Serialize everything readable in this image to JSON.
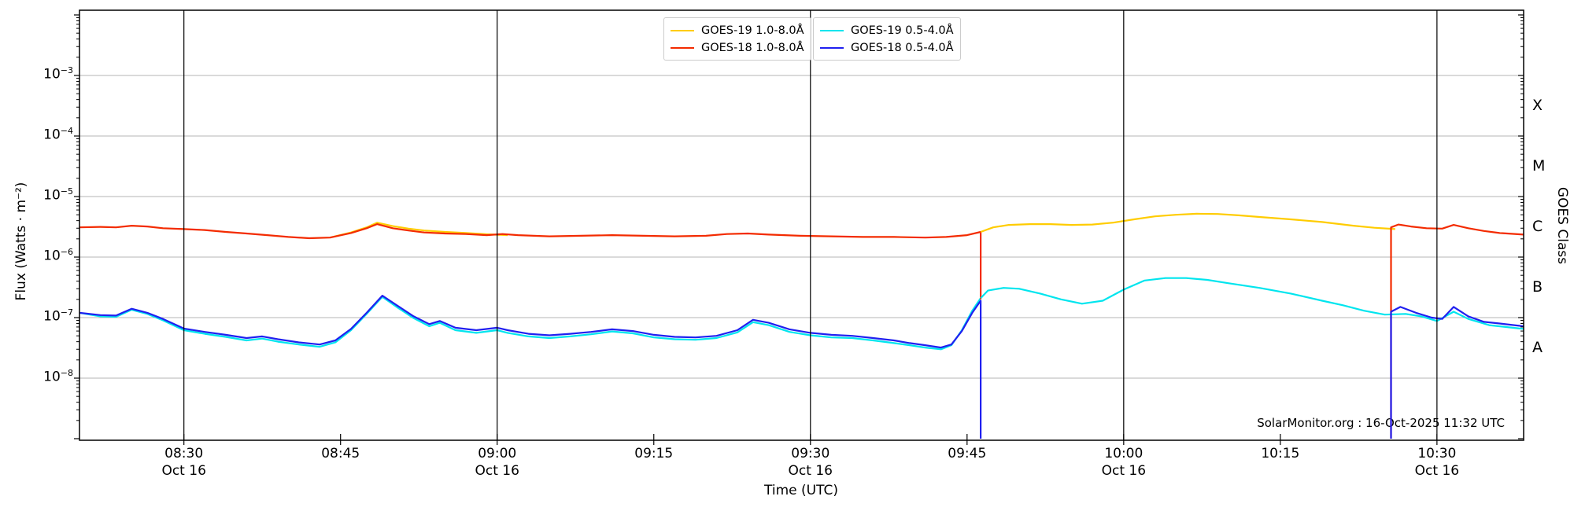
{
  "chart_data": {
    "type": "line",
    "title": "",
    "xlabel": "Time (UTC)",
    "ylabel_left": "Flux (Watts · m⁻²)",
    "ylabel_right": "GOES Class",
    "watermark": "SolarMonitor.org : 16-Oct-2025 11:32 UTC",
    "x_axis": {
      "range_minutes_utc": [
        500,
        638.3
      ],
      "major_ticks": [
        {
          "label": "08:30",
          "date": "Oct 16",
          "minutes": 510
        },
        {
          "label": "08:45",
          "date": "",
          "minutes": 525
        },
        {
          "label": "09:00",
          "date": "Oct 16",
          "minutes": 540
        },
        {
          "label": "09:15",
          "date": "",
          "minutes": 555
        },
        {
          "label": "09:30",
          "date": "Oct 16",
          "minutes": 570
        },
        {
          "label": "09:45",
          "date": "",
          "minutes": 585
        },
        {
          "label": "10:00",
          "date": "Oct 16",
          "minutes": 600
        },
        {
          "label": "10:15",
          "date": "",
          "minutes": 615
        },
        {
          "label": "10:30",
          "date": "Oct 16",
          "minutes": 630
        }
      ],
      "day_boundary_lines_minutes": [
        510,
        540,
        570,
        600,
        630
      ]
    },
    "y_axis": {
      "scale": "log",
      "labeled_decade_exponents": [
        -3,
        -4,
        -5,
        -6,
        -7,
        -8
      ],
      "gridline_exponents": [
        -3,
        -4,
        -5,
        -6,
        -7,
        -8
      ],
      "range_approx": [
        1e-09,
        0.01
      ]
    },
    "goes_classes": [
      {
        "label": "X",
        "log_center": -3.5
      },
      {
        "label": "M",
        "log_center": -4.5
      },
      {
        "label": "C",
        "log_center": -5.5
      },
      {
        "label": "B",
        "log_center": -6.5
      },
      {
        "label": "A",
        "log_center": -7.5
      }
    ],
    "legend": {
      "box1": [
        {
          "label": "GOES-19 1.0-8.0Å",
          "color": "#FFCC00"
        },
        {
          "label": "GOES-18 1.0-8.0Å",
          "color": "#F32B00"
        }
      ],
      "box2": [
        {
          "label": "GOES-19 0.5-4.0Å",
          "color": "#00E5EE"
        },
        {
          "label": "GOES-18 0.5-4.0Å",
          "color": "#2020F0"
        }
      ]
    },
    "colors": {
      "grid": "#b4b4b4",
      "axis": "#000000",
      "event_line": "#000000"
    },
    "series": [
      {
        "name": "GOES-19 0.5-4.0A pre-gap",
        "color": "#00E5EE",
        "points": [
          [
            500,
            1.2e-07
          ],
          [
            502,
            1.05e-07
          ],
          [
            503.5,
            1.03e-07
          ],
          [
            505,
            1.35e-07
          ],
          [
            506.5,
            1.15e-07
          ],
          [
            508,
            9e-08
          ],
          [
            510,
            6.2e-08
          ],
          [
            512,
            5.4e-08
          ],
          [
            514,
            4.8e-08
          ],
          [
            516,
            4.2e-08
          ],
          [
            517.5,
            4.5e-08
          ],
          [
            519,
            4e-08
          ],
          [
            521,
            3.6e-08
          ],
          [
            523,
            3.3e-08
          ],
          [
            524.5,
            3.9e-08
          ],
          [
            526,
            6.2e-08
          ],
          [
            527.5,
            1.15e-07
          ],
          [
            529,
            2.2e-07
          ],
          [
            530.5,
            1.45e-07
          ],
          [
            532,
            9.8e-08
          ],
          [
            533.5,
            7.2e-08
          ],
          [
            534.5,
            8.2e-08
          ],
          [
            536,
            6.2e-08
          ],
          [
            538,
            5.6e-08
          ],
          [
            540,
            6.2e-08
          ],
          [
            541,
            5.6e-08
          ],
          [
            543,
            4.9e-08
          ],
          [
            545,
            4.6e-08
          ],
          [
            547,
            4.9e-08
          ],
          [
            549,
            5.3e-08
          ],
          [
            551,
            5.9e-08
          ],
          [
            553,
            5.5e-08
          ],
          [
            555,
            4.7e-08
          ],
          [
            557,
            4.4e-08
          ],
          [
            559,
            4.3e-08
          ],
          [
            561,
            4.6e-08
          ],
          [
            563,
            5.7e-08
          ],
          [
            564.5,
            8.4e-08
          ],
          [
            566,
            7.5e-08
          ],
          [
            568,
            5.8e-08
          ],
          [
            570,
            5.1e-08
          ],
          [
            572,
            4.7e-08
          ],
          [
            574,
            4.6e-08
          ],
          [
            576,
            4.2e-08
          ],
          [
            578,
            3.8e-08
          ],
          [
            579.5,
            3.5e-08
          ],
          [
            581,
            3.2e-08
          ],
          [
            582.5,
            3e-08
          ],
          [
            583.5,
            3.5e-08
          ],
          [
            584.5,
            6.2e-08
          ],
          [
            585.5,
            1.3e-07
          ],
          [
            586.3,
            2.1e-07
          ]
        ]
      },
      {
        "name": "GOES-18 0.5-4.0A pre-gap",
        "color": "#2020F0",
        "points": [
          [
            500,
            1.2e-07
          ],
          [
            502,
            1.1e-07
          ],
          [
            503.5,
            1.08e-07
          ],
          [
            505,
            1.4e-07
          ],
          [
            506.5,
            1.2e-07
          ],
          [
            508,
            9.5e-08
          ],
          [
            510,
            6.6e-08
          ],
          [
            512,
            5.8e-08
          ],
          [
            514,
            5.2e-08
          ],
          [
            516,
            4.6e-08
          ],
          [
            517.5,
            4.9e-08
          ],
          [
            519,
            4.4e-08
          ],
          [
            521,
            3.9e-08
          ],
          [
            523,
            3.6e-08
          ],
          [
            524.5,
            4.2e-08
          ],
          [
            526,
            6.5e-08
          ],
          [
            527.5,
            1.2e-07
          ],
          [
            529,
            2.3e-07
          ],
          [
            530.5,
            1.55e-07
          ],
          [
            532,
            1.05e-07
          ],
          [
            533.5,
            7.8e-08
          ],
          [
            534.5,
            8.8e-08
          ],
          [
            536,
            6.8e-08
          ],
          [
            538,
            6.2e-08
          ],
          [
            540,
            6.8e-08
          ],
          [
            541,
            6.2e-08
          ],
          [
            543,
            5.4e-08
          ],
          [
            545,
            5.1e-08
          ],
          [
            547,
            5.4e-08
          ],
          [
            549,
            5.8e-08
          ],
          [
            551,
            6.4e-08
          ],
          [
            553,
            6e-08
          ],
          [
            555,
            5.2e-08
          ],
          [
            557,
            4.8e-08
          ],
          [
            559,
            4.7e-08
          ],
          [
            561,
            5e-08
          ],
          [
            563,
            6.2e-08
          ],
          [
            564.5,
            9.2e-08
          ],
          [
            566,
            8.2e-08
          ],
          [
            568,
            6.4e-08
          ],
          [
            570,
            5.6e-08
          ],
          [
            572,
            5.2e-08
          ],
          [
            574,
            5e-08
          ],
          [
            576,
            4.6e-08
          ],
          [
            578,
            4.2e-08
          ],
          [
            579.5,
            3.8e-08
          ],
          [
            581,
            3.5e-08
          ],
          [
            582.5,
            3.2e-08
          ],
          [
            583.5,
            3.6e-08
          ],
          [
            584.5,
            6e-08
          ],
          [
            585.5,
            1.2e-07
          ],
          [
            586.3,
            1.9e-07
          ],
          [
            586.3,
            1e-09
          ]
        ]
      },
      {
        "name": "GOES-19 1.0-8.0A flare segment",
        "color": "#FFCC00",
        "points": [
          [
            524,
            2.1e-06
          ],
          [
            526,
            2.55e-06
          ],
          [
            527.5,
            3.1e-06
          ],
          [
            528.5,
            3.7e-06
          ],
          [
            530,
            3.25e-06
          ],
          [
            531.5,
            2.95e-06
          ],
          [
            533,
            2.75e-06
          ],
          [
            535,
            2.6e-06
          ],
          [
            537,
            2.5e-06
          ],
          [
            539,
            2.38e-06
          ],
          [
            541,
            2.3e-06
          ]
        ]
      },
      {
        "name": "GOES-18 1.0-8.0A pre-gap",
        "color": "#F32B00",
        "points": [
          [
            500,
            3.1e-06
          ],
          [
            502,
            3.15e-06
          ],
          [
            503.5,
            3.1e-06
          ],
          [
            505,
            3.3e-06
          ],
          [
            506.5,
            3.2e-06
          ],
          [
            508,
            3e-06
          ],
          [
            510,
            2.9e-06
          ],
          [
            512,
            2.8e-06
          ],
          [
            514,
            2.6e-06
          ],
          [
            516,
            2.45e-06
          ],
          [
            518,
            2.3e-06
          ],
          [
            520,
            2.15e-06
          ],
          [
            522,
            2.05e-06
          ],
          [
            524,
            2.1e-06
          ],
          [
            526,
            2.5e-06
          ],
          [
            527.5,
            3e-06
          ],
          [
            528.5,
            3.5e-06
          ],
          [
            530,
            3e-06
          ],
          [
            531.5,
            2.75e-06
          ],
          [
            533,
            2.55e-06
          ],
          [
            535,
            2.45e-06
          ],
          [
            537,
            2.4e-06
          ],
          [
            539,
            2.3e-06
          ],
          [
            540.5,
            2.4e-06
          ],
          [
            542,
            2.3e-06
          ],
          [
            545,
            2.2e-06
          ],
          [
            548,
            2.25e-06
          ],
          [
            551,
            2.3e-06
          ],
          [
            554,
            2.25e-06
          ],
          [
            557,
            2.2e-06
          ],
          [
            560,
            2.25e-06
          ],
          [
            562,
            2.4e-06
          ],
          [
            564,
            2.45e-06
          ],
          [
            566,
            2.35e-06
          ],
          [
            569,
            2.25e-06
          ],
          [
            572,
            2.2e-06
          ],
          [
            575,
            2.15e-06
          ],
          [
            578,
            2.15e-06
          ],
          [
            581,
            2.1e-06
          ],
          [
            583,
            2.15e-06
          ],
          [
            585,
            2.3e-06
          ],
          [
            586.3,
            2.6e-06
          ],
          [
            586.3,
            2e-07
          ]
        ]
      },
      {
        "name": "GOES-19 1.0-8.0A post-gap",
        "color": "#FFCC00",
        "points": [
          [
            586.3,
            2.6e-06
          ],
          [
            587.5,
            3.1e-06
          ],
          [
            589,
            3.4e-06
          ],
          [
            591,
            3.5e-06
          ],
          [
            593,
            3.5e-06
          ],
          [
            595,
            3.4e-06
          ],
          [
            597,
            3.45e-06
          ],
          [
            599,
            3.7e-06
          ],
          [
            601,
            4.2e-06
          ],
          [
            603,
            4.7e-06
          ],
          [
            605,
            5e-06
          ],
          [
            607,
            5.2e-06
          ],
          [
            609,
            5.15e-06
          ],
          [
            611,
            4.9e-06
          ],
          [
            613,
            4.6e-06
          ],
          [
            616,
            4.2e-06
          ],
          [
            619,
            3.8e-06
          ],
          [
            622,
            3.3e-06
          ],
          [
            624,
            3.05e-06
          ],
          [
            626,
            2.9e-06
          ]
        ]
      },
      {
        "name": "GOES-19 0.5-4.0A post-gap",
        "color": "#00E5EE",
        "points": [
          [
            586.3,
            2.1e-07
          ],
          [
            587,
            2.8e-07
          ],
          [
            588.5,
            3.1e-07
          ],
          [
            590,
            3e-07
          ],
          [
            592,
            2.5e-07
          ],
          [
            594,
            2e-07
          ],
          [
            596,
            1.7e-07
          ],
          [
            598,
            1.9e-07
          ],
          [
            600,
            2.9e-07
          ],
          [
            602,
            4.1e-07
          ],
          [
            604,
            4.5e-07
          ],
          [
            606,
            4.5e-07
          ],
          [
            608,
            4.2e-07
          ],
          [
            610,
            3.7e-07
          ],
          [
            613,
            3.1e-07
          ],
          [
            616,
            2.5e-07
          ],
          [
            619,
            1.9e-07
          ],
          [
            621,
            1.6e-07
          ],
          [
            623,
            1.3e-07
          ],
          [
            625,
            1.12e-07
          ],
          [
            627,
            1.15e-07
          ],
          [
            628.5,
            1.05e-07
          ],
          [
            630,
            8.8e-08
          ],
          [
            631.6,
            1.25e-07
          ],
          [
            633,
            9.5e-08
          ],
          [
            635,
            7.5e-08
          ],
          [
            638.3,
            6.5e-08
          ]
        ]
      },
      {
        "name": "GOES-18 1.0-8.0A post-gap",
        "color": "#F32B00",
        "points": [
          [
            625.6,
            1e-09
          ],
          [
            625.6,
            3.1e-06
          ],
          [
            626.3,
            3.45e-06
          ],
          [
            627.5,
            3.2e-06
          ],
          [
            629,
            3e-06
          ],
          [
            630.5,
            2.95e-06
          ],
          [
            631.6,
            3.4e-06
          ],
          [
            633,
            3e-06
          ],
          [
            634.5,
            2.7e-06
          ],
          [
            636,
            2.5e-06
          ],
          [
            638.3,
            2.35e-06
          ]
        ]
      },
      {
        "name": "GOES-18 0.5-4.0A post-gap",
        "color": "#2020F0",
        "points": [
          [
            625.6,
            1e-09
          ],
          [
            625.6,
            1.25e-07
          ],
          [
            626.5,
            1.5e-07
          ],
          [
            628,
            1.2e-07
          ],
          [
            629.5,
            1e-07
          ],
          [
            630.5,
            9.5e-08
          ],
          [
            631.6,
            1.5e-07
          ],
          [
            633,
            1.05e-07
          ],
          [
            634.5,
            8.5e-08
          ],
          [
            636,
            8e-08
          ],
          [
            638.3,
            7.2e-08
          ]
        ]
      }
    ]
  }
}
